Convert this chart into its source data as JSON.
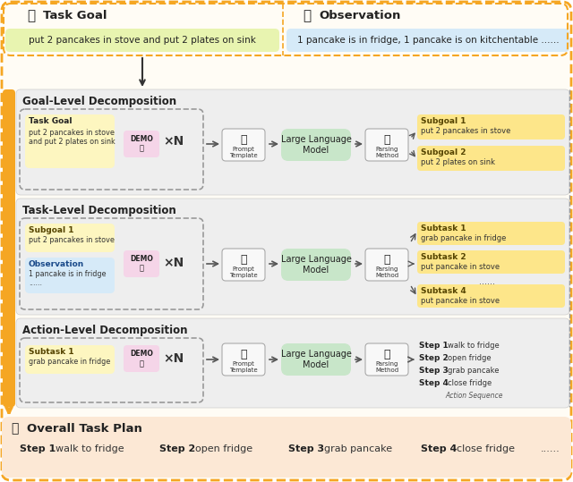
{
  "fig_width": 6.4,
  "fig_height": 5.39,
  "bg_color": "#ffffff",
  "task_goal_text": "put 2 pancakes in stove and put 2 plates on sink",
  "obs_text": "1 pancake is in fridge, 1 pancake is on kitchentable ......",
  "task_goal_bg": "#e8f4b0",
  "obs_bg": "#d6eaf8",
  "section1_title": "Goal-Level Decomposition",
  "section2_title": "Task-Level Decomposition",
  "section3_title": "Action-Level Decomposition",
  "section_bg": "#eeeeee",
  "demo_bg": "#f5d5e8",
  "llm_bg": "#c8e6c9",
  "prompt_bg": "#ffffff",
  "subgoal_bg": "#fde68a",
  "subtask_bg": "#fde68a",
  "overall_bg": "#fce8d5",
  "orange_bar": "#f5a623",
  "orange_dash": "#f5a623",
  "dashed_color": "#999999"
}
